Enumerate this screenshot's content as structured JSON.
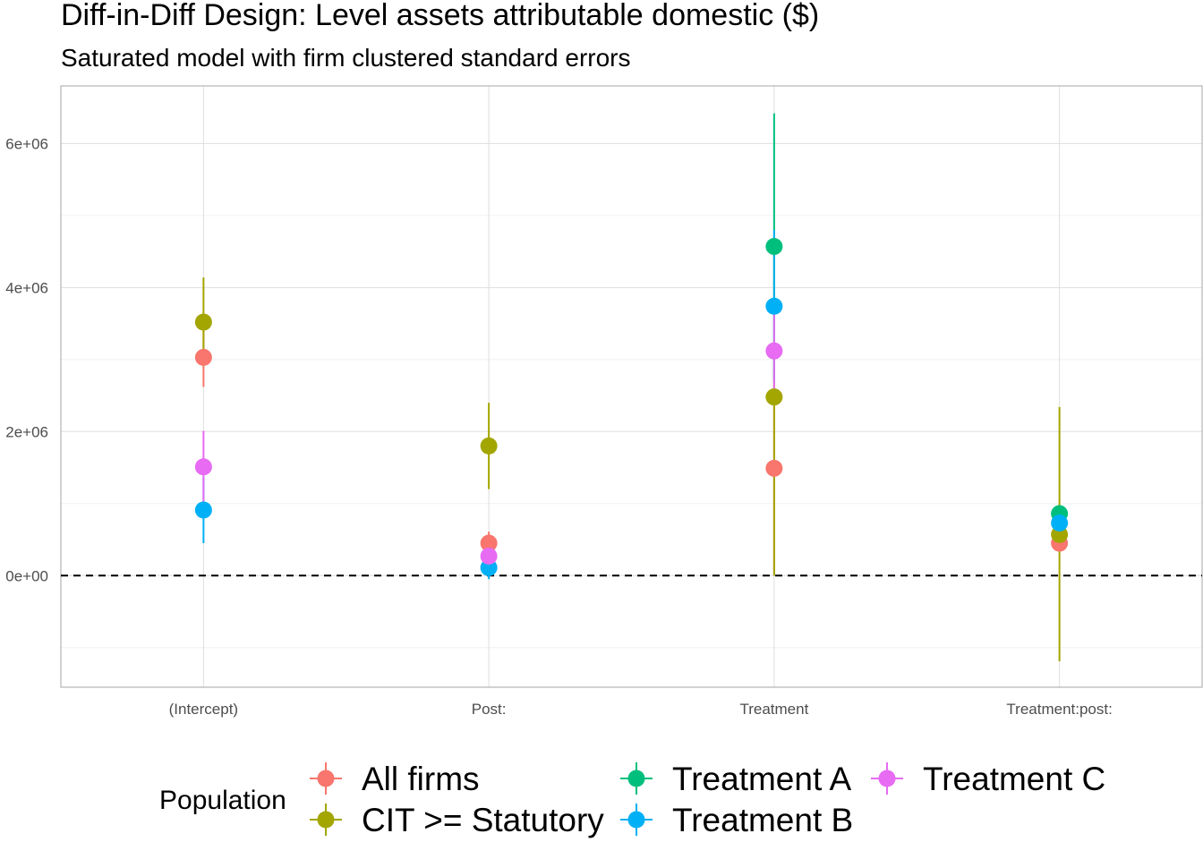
{
  "chart_data": {
    "type": "scatter",
    "title": "Diff-in-Diff Design: Level assets attributable domestic  ($)",
    "subtitle": "Saturated model with firm clustered standard errors",
    "xlabel": "",
    "ylabel": "",
    "categories": [
      "(Intercept)",
      "Post:",
      "Treatment",
      "Treatment:post:"
    ],
    "y_ticks": [
      {
        "value": 0,
        "label": "0e+00"
      },
      {
        "value": 2000000,
        "label": "2e+06"
      },
      {
        "value": 4000000,
        "label": "4e+06"
      },
      {
        "value": 6000000,
        "label": "6e+06"
      }
    ],
    "ylim": [
      -1550000,
      6800000
    ],
    "reference_line": {
      "value": 0,
      "style": "dashed"
    },
    "grid": true,
    "legend": {
      "title": "Population",
      "position": "bottom"
    },
    "series": [
      {
        "name": "All firms",
        "color": "#F8766D",
        "estimates": [
          3030000,
          450000,
          1490000,
          450000
        ],
        "lower": [
          2620000,
          290000,
          20000,
          390000
        ],
        "upper": [
          3420000,
          610000,
          2950000,
          510000
        ]
      },
      {
        "name": "CIT >= Statutory",
        "color": "#A3A500",
        "estimates": [
          3520000,
          1800000,
          2480000,
          570000
        ],
        "lower": [
          2910000,
          1200000,
          0,
          -1190000
        ],
        "upper": [
          4140000,
          2400000,
          4560000,
          2340000
        ]
      },
      {
        "name": "Treatment A",
        "color": "#00BF7D",
        "estimates": [
          null,
          null,
          4570000,
          860000
        ],
        "lower": [
          null,
          null,
          2730000,
          830000
        ],
        "upper": [
          null,
          null,
          6420000,
          890000
        ]
      },
      {
        "name": "Treatment B",
        "color": "#00B0F6",
        "estimates": [
          910000,
          110000,
          3740000,
          730000
        ],
        "lower": [
          450000,
          -50000,
          2680000,
          580000
        ],
        "upper": [
          1370000,
          270000,
          4800000,
          880000
        ]
      },
      {
        "name": "Treatment C",
        "color": "#E76BF3",
        "estimates": [
          1510000,
          270000,
          3120000,
          null
        ],
        "lower": [
          1010000,
          150000,
          2560000,
          null
        ],
        "upper": [
          2010000,
          390000,
          3680000,
          null
        ]
      }
    ]
  }
}
